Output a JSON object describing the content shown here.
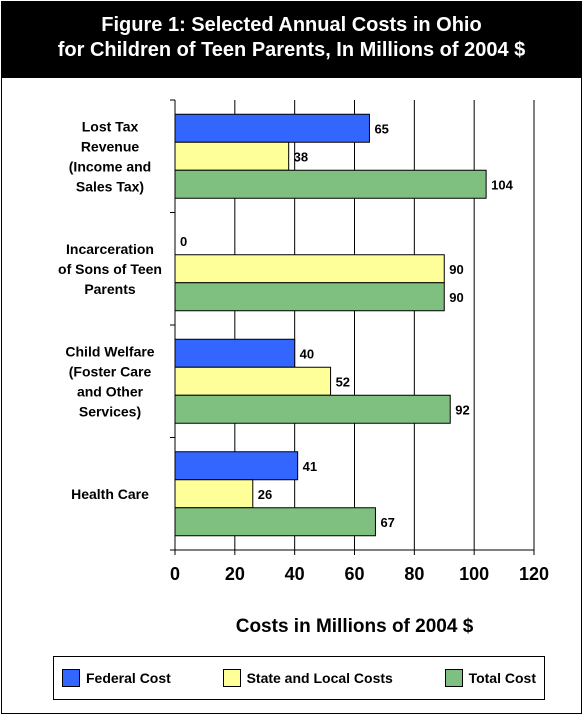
{
  "title": {
    "line1": "Figure 1: Selected Annual Costs in Ohio",
    "line2": "for Children of Teen Parents, In Millions of 2004 $"
  },
  "colors": {
    "federal": "#3366FF",
    "state": "#FFFF99",
    "total": "#7FBF7F"
  },
  "chart_data": {
    "type": "bar",
    "orientation": "horizontal",
    "title": "Figure 1: Selected Annual Costs in Ohio for Children of Teen Parents, In Millions of 2004 $",
    "xlabel": "Costs in Millions of 2004 $",
    "ylabel": "",
    "xlim": [
      0,
      120
    ],
    "xticks": [
      0,
      20,
      40,
      60,
      80,
      100,
      120
    ],
    "grid": true,
    "legend_position": "bottom",
    "categories": [
      [
        "Lost Tax",
        "Revenue",
        "(Income and",
        "Sales Tax)"
      ],
      [
        "Incarceration",
        "of Sons of Teen",
        "Parents"
      ],
      [
        "Child Welfare",
        "(Foster Care",
        "and Other",
        "Services)"
      ],
      [
        "Health Care"
      ]
    ],
    "series": [
      {
        "name": "Federal Cost",
        "values": [
          65,
          0,
          40,
          41
        ]
      },
      {
        "name": "State and Local Costs",
        "values": [
          38,
          90,
          52,
          26
        ]
      },
      {
        "name": "Total Cost",
        "values": [
          104,
          90,
          92,
          67
        ]
      }
    ]
  }
}
